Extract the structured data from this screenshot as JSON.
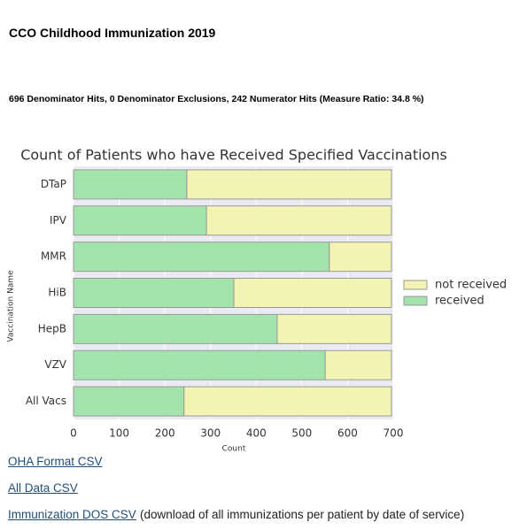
{
  "header": {
    "title": "CCO Childhood Immunization 2019",
    "summary": "696 Denominator Hits, 0 Denominator Exclusions, 242 Numerator Hits (Measure Ratio: 34.8 %)"
  },
  "chart_data": {
    "type": "stacked-barh",
    "title": "Count of Patients who have Received Specified Vaccinations",
    "x_label": "Count",
    "y_label": "Vaccination Name",
    "categories": [
      "DTaP",
      "IPV",
      "MMR",
      "HiB",
      "HepB",
      "VZV",
      "All Vacs"
    ],
    "series": [
      {
        "name": "received",
        "color": "#a3e4ad",
        "values": [
          248,
          291,
          560,
          351,
          446,
          551,
          242
        ]
      },
      {
        "name": "not received",
        "color": "#f3f3b3",
        "values": [
          448,
          405,
          136,
          345,
          250,
          145,
          454
        ]
      }
    ],
    "xlim": [
      0,
      700
    ],
    "xticks": [
      0,
      100,
      200,
      300,
      400,
      500,
      600,
      700
    ],
    "grid": true,
    "legend": "right"
  },
  "links": [
    {
      "text": "OHA Format CSV"
    },
    {
      "text": "All Data CSV"
    },
    {
      "text": "Immunization DOS CSV",
      "note": "(download of all immunizations per patient by date of service)"
    }
  ]
}
